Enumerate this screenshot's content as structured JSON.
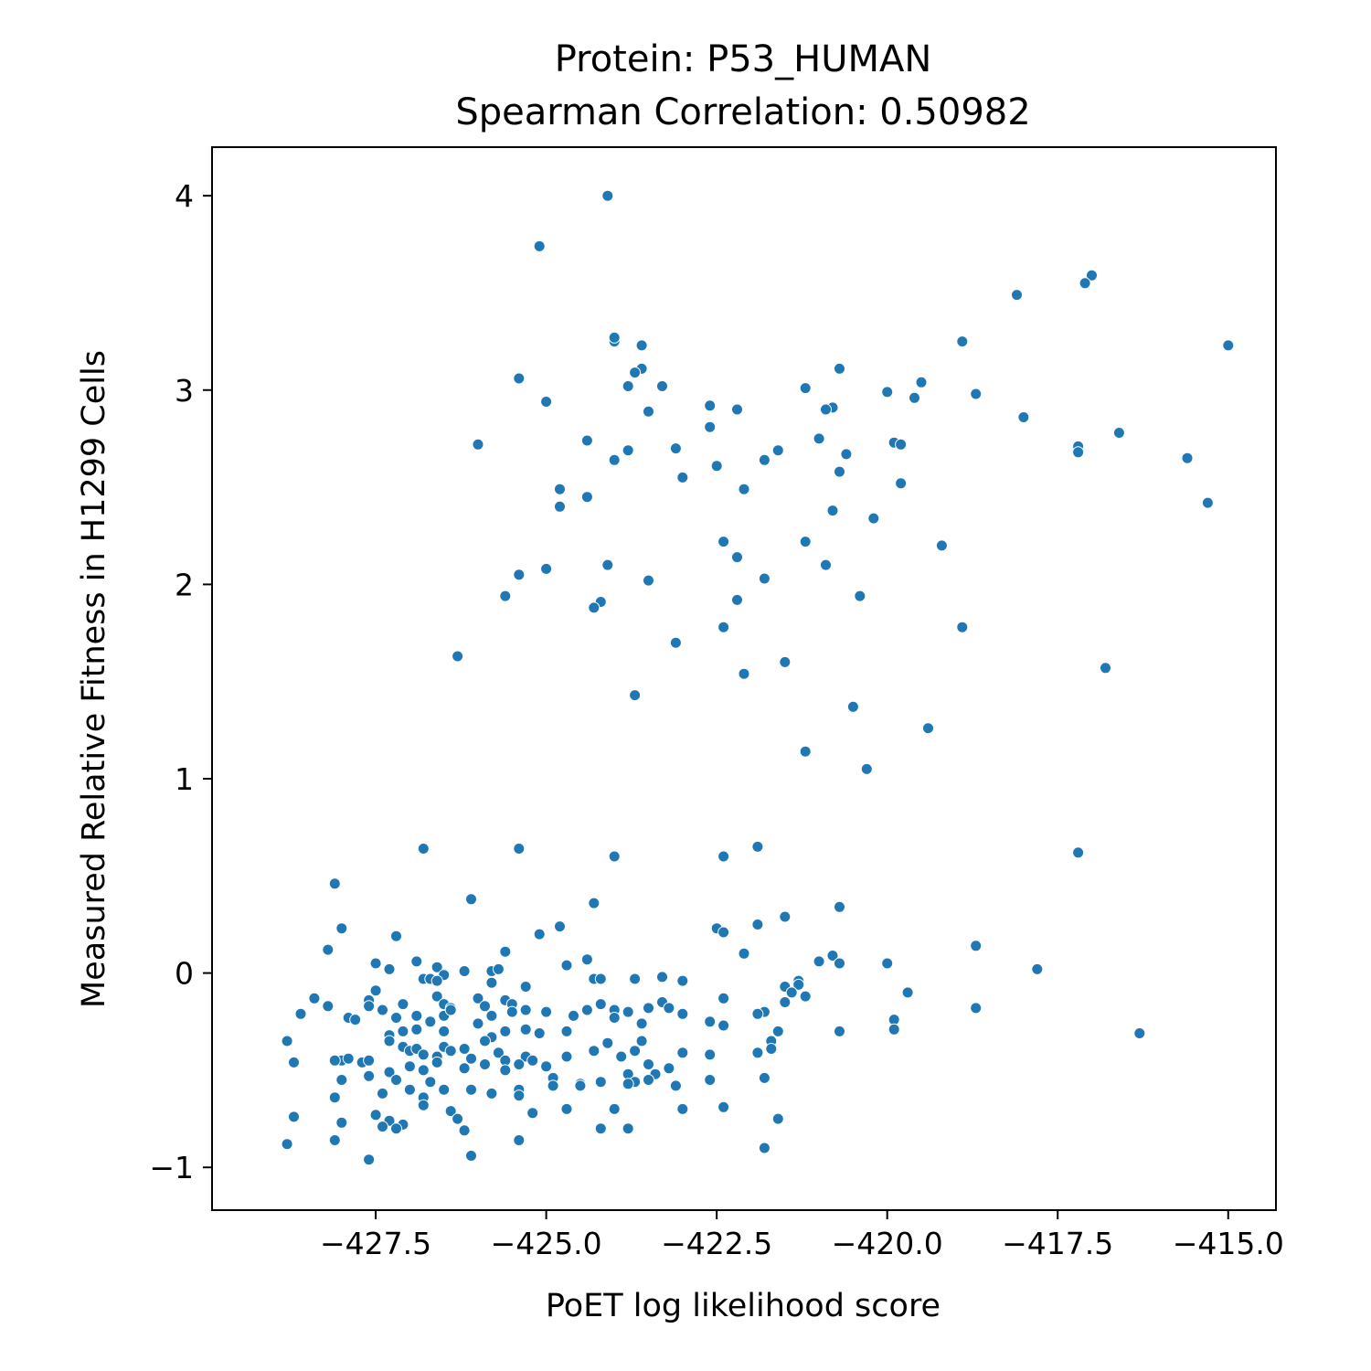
{
  "chart_data": {
    "type": "scatter",
    "title": "Protein: P53_HUMAN",
    "subtitle": "Spearman Correlation: 0.50982",
    "xlabel": "PoET log likelihood score",
    "ylabel": "Measured Relative Fitness in H1299 Cells",
    "xlim": [
      -429.9,
      -414.3
    ],
    "ylim": [
      -1.22,
      4.25
    ],
    "xticks": [
      -427.5,
      -425.0,
      -422.5,
      -420.0,
      -417.5,
      -415.0
    ],
    "xtick_labels": [
      "−427.5",
      "−425.0",
      "−422.5",
      "−420.0",
      "−417.5",
      "−415.0"
    ],
    "yticks": [
      -1,
      0,
      1,
      2,
      3,
      4
    ],
    "ytick_labels": [
      "−1",
      "0",
      "1",
      "2",
      "3",
      "4"
    ],
    "grid": false,
    "marker_color": "#1f77b4",
    "points": [
      [
        -424.1,
        4.0
      ],
      [
        -425.1,
        3.74
      ],
      [
        -417.0,
        3.59
      ],
      [
        -417.1,
        3.55
      ],
      [
        -418.1,
        3.49
      ],
      [
        -415.0,
        3.23
      ],
      [
        -418.9,
        3.25
      ],
      [
        -424.0,
        3.25
      ],
      [
        -424.0,
        3.27
      ],
      [
        -423.6,
        3.23
      ],
      [
        -423.6,
        3.11
      ],
      [
        -423.7,
        3.09
      ],
      [
        -420.7,
        3.11
      ],
      [
        -425.4,
        3.06
      ],
      [
        -419.5,
        3.04
      ],
      [
        -423.8,
        3.02
      ],
      [
        -423.3,
        3.02
      ],
      [
        -421.2,
        3.01
      ],
      [
        -420.0,
        2.99
      ],
      [
        -418.7,
        2.98
      ],
      [
        -419.6,
        2.96
      ],
      [
        -425.0,
        2.94
      ],
      [
        -422.6,
        2.92
      ],
      [
        -420.8,
        2.91
      ],
      [
        -420.9,
        2.9
      ],
      [
        -422.2,
        2.9
      ],
      [
        -423.5,
        2.89
      ],
      [
        -418.0,
        2.86
      ],
      [
        -422.6,
        2.81
      ],
      [
        -416.6,
        2.78
      ],
      [
        -421.0,
        2.75
      ],
      [
        -419.9,
        2.73
      ],
      [
        -419.8,
        2.72
      ],
      [
        -426.0,
        2.72
      ],
      [
        -417.2,
        2.71
      ],
      [
        -424.4,
        2.74
      ],
      [
        -423.1,
        2.7
      ],
      [
        -423.8,
        2.69
      ],
      [
        -421.6,
        2.69
      ],
      [
        -417.2,
        2.68
      ],
      [
        -420.6,
        2.67
      ],
      [
        -415.6,
        2.65
      ],
      [
        -424.0,
        2.64
      ],
      [
        -421.8,
        2.64
      ],
      [
        -422.5,
        2.61
      ],
      [
        -420.7,
        2.58
      ],
      [
        -423.0,
        2.55
      ],
      [
        -419.8,
        2.52
      ],
      [
        -424.8,
        2.49
      ],
      [
        -422.1,
        2.49
      ],
      [
        -424.4,
        2.45
      ],
      [
        -415.3,
        2.42
      ],
      [
        -424.8,
        2.4
      ],
      [
        -420.8,
        2.38
      ],
      [
        -420.2,
        2.34
      ],
      [
        -422.4,
        2.22
      ],
      [
        -421.2,
        2.22
      ],
      [
        -419.2,
        2.2
      ],
      [
        -422.2,
        2.14
      ],
      [
        -424.1,
        2.1
      ],
      [
        -420.9,
        2.1
      ],
      [
        -425.0,
        2.08
      ],
      [
        -425.4,
        2.05
      ],
      [
        -423.5,
        2.02
      ],
      [
        -421.8,
        2.03
      ],
      [
        -425.6,
        1.94
      ],
      [
        -420.4,
        1.94
      ],
      [
        -422.2,
        1.92
      ],
      [
        -424.2,
        1.91
      ],
      [
        -424.3,
        1.88
      ],
      [
        -422.4,
        1.78
      ],
      [
        -418.9,
        1.78
      ],
      [
        -423.1,
        1.7
      ],
      [
        -426.3,
        1.63
      ],
      [
        -421.5,
        1.6
      ],
      [
        -416.8,
        1.57
      ],
      [
        -422.1,
        1.54
      ],
      [
        -423.7,
        1.43
      ],
      [
        -420.5,
        1.37
      ],
      [
        -419.4,
        1.26
      ],
      [
        -421.2,
        1.14
      ],
      [
        -420.3,
        1.05
      ],
      [
        -426.8,
        0.64
      ],
      [
        -425.4,
        0.64
      ],
      [
        -421.9,
        0.65
      ],
      [
        -424.0,
        0.6
      ],
      [
        -422.4,
        0.6
      ],
      [
        -417.2,
        0.62
      ],
      [
        -428.1,
        0.46
      ],
      [
        -426.1,
        0.38
      ],
      [
        -424.3,
        0.36
      ],
      [
        -420.7,
        0.34
      ],
      [
        -421.5,
        0.29
      ],
      [
        -421.9,
        0.25
      ],
      [
        -428.0,
        0.23
      ],
      [
        -422.5,
        0.23
      ],
      [
        -424.8,
        0.24
      ],
      [
        -422.4,
        0.21
      ],
      [
        -425.1,
        0.2
      ],
      [
        -427.2,
        0.19
      ],
      [
        -428.2,
        0.12
      ],
      [
        -418.7,
        0.14
      ],
      [
        -425.6,
        0.11
      ],
      [
        -422.1,
        0.1
      ],
      [
        -420.8,
        0.09
      ],
      [
        -421.0,
        0.06
      ],
      [
        -427.5,
        0.05
      ],
      [
        -426.9,
        0.06
      ],
      [
        -424.4,
        0.07
      ],
      [
        -424.7,
        0.04
      ],
      [
        -420.7,
        0.05
      ],
      [
        -420.0,
        0.05
      ],
      [
        -417.8,
        0.02
      ],
      [
        -427.3,
        0.02
      ],
      [
        -426.6,
        0.03
      ],
      [
        -426.2,
        0.01
      ],
      [
        -425.8,
        0.01
      ],
      [
        -425.7,
        0.02
      ],
      [
        -426.5,
        -0.01
      ],
      [
        -426.8,
        -0.03
      ],
      [
        -426.7,
        -0.03
      ],
      [
        -426.6,
        -0.04
      ],
      [
        -425.8,
        -0.05
      ],
      [
        -424.3,
        -0.03
      ],
      [
        -424.2,
        -0.03
      ],
      [
        -423.7,
        -0.03
      ],
      [
        -423.3,
        -0.02
      ],
      [
        -423.0,
        -0.04
      ],
      [
        -421.3,
        -0.04
      ],
      [
        -421.3,
        -0.06
      ],
      [
        -421.5,
        -0.07
      ],
      [
        -425.3,
        -0.07
      ],
      [
        -427.5,
        -0.09
      ],
      [
        -426.6,
        -0.12
      ],
      [
        -426.0,
        -0.13
      ],
      [
        -425.6,
        -0.14
      ],
      [
        -421.4,
        -0.1
      ],
      [
        -421.2,
        -0.12
      ],
      [
        -419.7,
        -0.1
      ],
      [
        -422.4,
        -0.13
      ],
      [
        -428.4,
        -0.13
      ],
      [
        -427.6,
        -0.14
      ],
      [
        -427.6,
        -0.17
      ],
      [
        -427.1,
        -0.16
      ],
      [
        -426.5,
        -0.16
      ],
      [
        -426.4,
        -0.18
      ],
      [
        -425.9,
        -0.17
      ],
      [
        -425.5,
        -0.16
      ],
      [
        -425.3,
        -0.19
      ],
      [
        -425.0,
        -0.2
      ],
      [
        -425.0,
        -0.2
      ],
      [
        -424.2,
        -0.16
      ],
      [
        -424.0,
        -0.19
      ],
      [
        -423.8,
        -0.2
      ],
      [
        -423.5,
        -0.18
      ],
      [
        -423.3,
        -0.15
      ],
      [
        -423.2,
        -0.18
      ],
      [
        -423.0,
        -0.21
      ],
      [
        -421.8,
        -0.2
      ],
      [
        -421.5,
        -0.15
      ],
      [
        -428.6,
        -0.21
      ],
      [
        -428.2,
        -0.17
      ],
      [
        -427.9,
        -0.23
      ],
      [
        -427.4,
        -0.19
      ],
      [
        -427.2,
        -0.23
      ],
      [
        -426.9,
        -0.22
      ],
      [
        -426.7,
        -0.25
      ],
      [
        -426.5,
        -0.22
      ],
      [
        -426.4,
        -0.19
      ],
      [
        -425.8,
        -0.22
      ],
      [
        -425.5,
        -0.2
      ],
      [
        -424.6,
        -0.22
      ],
      [
        -424.4,
        -0.19
      ],
      [
        -424.0,
        -0.23
      ],
      [
        -423.6,
        -0.26
      ],
      [
        -422.6,
        -0.25
      ],
      [
        -422.4,
        -0.27
      ],
      [
        -421.9,
        -0.21
      ],
      [
        -418.7,
        -0.18
      ],
      [
        -416.3,
        -0.31
      ],
      [
        -419.9,
        -0.24
      ],
      [
        -419.9,
        -0.29
      ],
      [
        -420.7,
        -0.3
      ],
      [
        -421.6,
        -0.3
      ],
      [
        -428.8,
        -0.35
      ],
      [
        -427.8,
        -0.24
      ],
      [
        -427.3,
        -0.32
      ],
      [
        -427.1,
        -0.3
      ],
      [
        -426.9,
        -0.29
      ],
      [
        -426.5,
        -0.3
      ],
      [
        -426.0,
        -0.26
      ],
      [
        -425.8,
        -0.33
      ],
      [
        -425.6,
        -0.3
      ],
      [
        -425.3,
        -0.29
      ],
      [
        -425.1,
        -0.31
      ],
      [
        -424.7,
        -0.3
      ],
      [
        -424.1,
        -0.36
      ],
      [
        -423.6,
        -0.35
      ],
      [
        -421.7,
        -0.35
      ],
      [
        -428.7,
        -0.46
      ],
      [
        -428.0,
        -0.45
      ],
      [
        -427.9,
        -0.44
      ],
      [
        -427.7,
        -0.46
      ],
      [
        -427.6,
        -0.45
      ],
      [
        -427.3,
        -0.35
      ],
      [
        -427.1,
        -0.38
      ],
      [
        -427.0,
        -0.4
      ],
      [
        -426.9,
        -0.39
      ],
      [
        -426.8,
        -0.42
      ],
      [
        -426.6,
        -0.43
      ],
      [
        -426.5,
        -0.38
      ],
      [
        -426.4,
        -0.4
      ],
      [
        -426.2,
        -0.39
      ],
      [
        -426.1,
        -0.44
      ],
      [
        -425.9,
        -0.35
      ],
      [
        -425.7,
        -0.41
      ],
      [
        -425.6,
        -0.45
      ],
      [
        -425.3,
        -0.43
      ],
      [
        -425.2,
        -0.45
      ],
      [
        -425.0,
        -0.48
      ],
      [
        -424.7,
        -0.43
      ],
      [
        -424.3,
        -0.4
      ],
      [
        -423.9,
        -0.43
      ],
      [
        -423.7,
        -0.4
      ],
      [
        -423.5,
        -0.47
      ],
      [
        -423.0,
        -0.41
      ],
      [
        -422.6,
        -0.42
      ],
      [
        -421.9,
        -0.41
      ],
      [
        -421.7,
        -0.39
      ],
      [
        -428.1,
        -0.45
      ],
      [
        -427.3,
        -0.51
      ],
      [
        -427.0,
        -0.48
      ],
      [
        -426.8,
        -0.5
      ],
      [
        -426.6,
        -0.46
      ],
      [
        -426.2,
        -0.49
      ],
      [
        -425.9,
        -0.47
      ],
      [
        -425.6,
        -0.5
      ],
      [
        -425.4,
        -0.47
      ],
      [
        -424.9,
        -0.54
      ],
      [
        -424.5,
        -0.57
      ],
      [
        -424.2,
        -0.56
      ],
      [
        -423.8,
        -0.52
      ],
      [
        -423.7,
        -0.56
      ],
      [
        -423.4,
        -0.52
      ],
      [
        -423.2,
        -0.49
      ],
      [
        -422.6,
        -0.55
      ],
      [
        -421.8,
        -0.54
      ],
      [
        -428.0,
        -0.55
      ],
      [
        -427.6,
        -0.53
      ],
      [
        -427.2,
        -0.55
      ],
      [
        -427.0,
        -0.6
      ],
      [
        -426.7,
        -0.56
      ],
      [
        -426.5,
        -0.6
      ],
      [
        -426.1,
        -0.6
      ],
      [
        -425.8,
        -0.62
      ],
      [
        -425.4,
        -0.6
      ],
      [
        -424.9,
        -0.58
      ],
      [
        -424.5,
        -0.58
      ],
      [
        -423.8,
        -0.57
      ],
      [
        -423.5,
        -0.55
      ],
      [
        -423.1,
        -0.58
      ],
      [
        -428.1,
        -0.64
      ],
      [
        -427.4,
        -0.62
      ],
      [
        -426.8,
        -0.64
      ],
      [
        -425.4,
        -0.63
      ],
      [
        -428.7,
        -0.74
      ],
      [
        -428.0,
        -0.77
      ],
      [
        -427.5,
        -0.73
      ],
      [
        -427.3,
        -0.76
      ],
      [
        -427.1,
        -0.78
      ],
      [
        -426.8,
        -0.68
      ],
      [
        -426.4,
        -0.71
      ],
      [
        -426.3,
        -0.75
      ],
      [
        -425.2,
        -0.72
      ],
      [
        -424.7,
        -0.7
      ],
      [
        -424.0,
        -0.7
      ],
      [
        -423.0,
        -0.7
      ],
      [
        -422.4,
        -0.69
      ],
      [
        -421.6,
        -0.75
      ],
      [
        -428.8,
        -0.88
      ],
      [
        -428.1,
        -0.86
      ],
      [
        -427.6,
        -0.96
      ],
      [
        -427.4,
        -0.79
      ],
      [
        -427.2,
        -0.8
      ],
      [
        -426.2,
        -0.81
      ],
      [
        -426.1,
        -0.94
      ],
      [
        -425.4,
        -0.86
      ],
      [
        -424.2,
        -0.8
      ],
      [
        -423.8,
        -0.8
      ],
      [
        -421.8,
        -0.9
      ]
    ]
  }
}
